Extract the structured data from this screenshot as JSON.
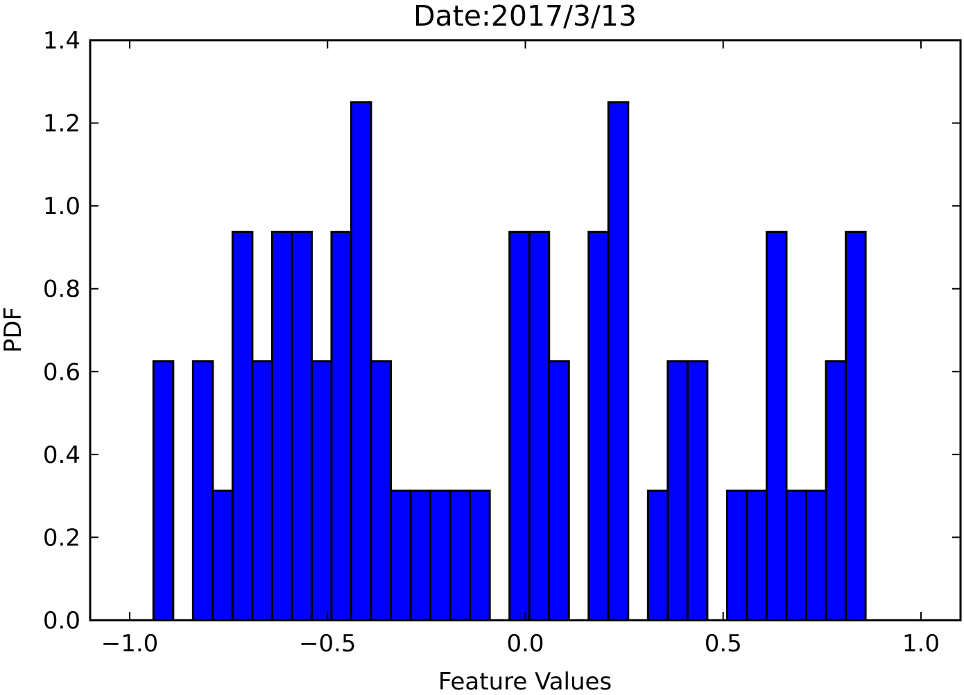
{
  "chart_data": {
    "type": "bar",
    "title": "Date:2017/3/13",
    "xlabel": "Feature Values",
    "ylabel": "PDF",
    "xlim": [
      -1.1,
      1.1
    ],
    "ylim": [
      0.0,
      1.4
    ],
    "xticks": [
      -1.0,
      -0.5,
      0.0,
      0.5,
      1.0
    ],
    "xtick_labels": [
      "−1.0",
      "−0.5",
      "0.0",
      "0.5",
      "1.0"
    ],
    "yticks": [
      0.0,
      0.2,
      0.4,
      0.6,
      0.8,
      1.0,
      1.2,
      1.4
    ],
    "ytick_labels": [
      "0.0",
      "0.2",
      "0.4",
      "0.6",
      "0.8",
      "1.0",
      "1.2",
      "1.4"
    ],
    "grid": false,
    "legend": "none",
    "bar_color": "#0000ff",
    "edge_color": "#000000",
    "bins": [
      {
        "x0": -0.94,
        "x1": -0.89,
        "value": 0.625
      },
      {
        "x0": -0.89,
        "x1": -0.84,
        "value": 0.0
      },
      {
        "x0": -0.84,
        "x1": -0.79,
        "value": 0.625
      },
      {
        "x0": -0.79,
        "x1": -0.74,
        "value": 0.3125
      },
      {
        "x0": -0.74,
        "x1": -0.69,
        "value": 0.9375
      },
      {
        "x0": -0.69,
        "x1": -0.64,
        "value": 0.625
      },
      {
        "x0": -0.64,
        "x1": -0.59,
        "value": 0.9375
      },
      {
        "x0": -0.59,
        "x1": -0.54,
        "value": 0.9375
      },
      {
        "x0": -0.54,
        "x1": -0.49,
        "value": 0.625
      },
      {
        "x0": -0.49,
        "x1": -0.44,
        "value": 0.9375
      },
      {
        "x0": -0.44,
        "x1": -0.39,
        "value": 1.25
      },
      {
        "x0": -0.39,
        "x1": -0.34,
        "value": 0.625
      },
      {
        "x0": -0.34,
        "x1": -0.29,
        "value": 0.3125
      },
      {
        "x0": -0.29,
        "x1": -0.24,
        "value": 0.3125
      },
      {
        "x0": -0.24,
        "x1": -0.19,
        "value": 0.3125
      },
      {
        "x0": -0.19,
        "x1": -0.14,
        "value": 0.3125
      },
      {
        "x0": -0.14,
        "x1": -0.09,
        "value": 0.3125
      },
      {
        "x0": -0.09,
        "x1": -0.04,
        "value": 0.0
      },
      {
        "x0": -0.04,
        "x1": 0.01,
        "value": 0.9375
      },
      {
        "x0": 0.01,
        "x1": 0.06,
        "value": 0.9375
      },
      {
        "x0": 0.06,
        "x1": 0.11,
        "value": 0.625
      },
      {
        "x0": 0.11,
        "x1": 0.16,
        "value": 0.0
      },
      {
        "x0": 0.16,
        "x1": 0.21,
        "value": 0.9375
      },
      {
        "x0": 0.21,
        "x1": 0.26,
        "value": 1.25
      },
      {
        "x0": 0.26,
        "x1": 0.31,
        "value": 0.0
      },
      {
        "x0": 0.31,
        "x1": 0.36,
        "value": 0.3125
      },
      {
        "x0": 0.36,
        "x1": 0.41,
        "value": 0.625
      },
      {
        "x0": 0.41,
        "x1": 0.46,
        "value": 0.625
      },
      {
        "x0": 0.46,
        "x1": 0.51,
        "value": 0.0
      },
      {
        "x0": 0.51,
        "x1": 0.56,
        "value": 0.3125
      },
      {
        "x0": 0.56,
        "x1": 0.61,
        "value": 0.3125
      },
      {
        "x0": 0.61,
        "x1": 0.66,
        "value": 0.9375
      },
      {
        "x0": 0.66,
        "x1": 0.71,
        "value": 0.3125
      },
      {
        "x0": 0.71,
        "x1": 0.76,
        "value": 0.3125
      },
      {
        "x0": 0.76,
        "x1": 0.81,
        "value": 0.625
      },
      {
        "x0": 0.81,
        "x1": 0.86,
        "value": 0.9375
      }
    ]
  }
}
